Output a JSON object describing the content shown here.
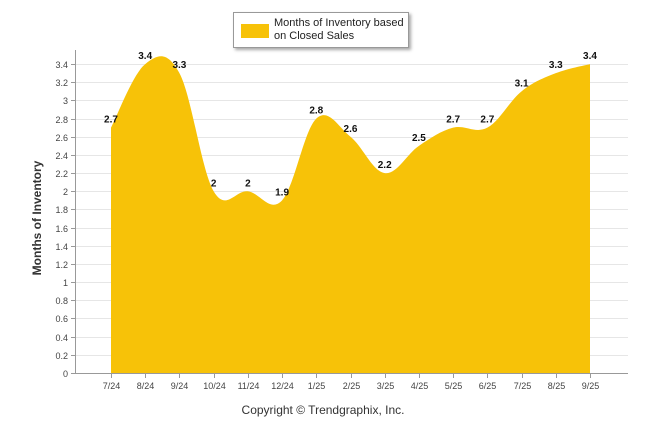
{
  "chart_data": {
    "type": "area",
    "categories": [
      "7/24",
      "8/24",
      "9/24",
      "10/24",
      "11/24",
      "12/24",
      "1/25",
      "2/25",
      "3/25",
      "4/25",
      "5/25",
      "6/25",
      "7/25",
      "8/25",
      "9/25"
    ],
    "series": [
      {
        "name": "Months of Inventory based on Closed Sales",
        "values": [
          2.7,
          3.4,
          3.3,
          2,
          2,
          1.9,
          2.8,
          2.6,
          2.2,
          2.5,
          2.7,
          2.7,
          3.1,
          3.3,
          3.4
        ],
        "labels": [
          "2.7",
          "3.4",
          "3.3",
          "2",
          "2",
          "1.9",
          "2.8",
          "2.6",
          "2.2",
          "2.5",
          "2.7",
          "2.7",
          "3.1",
          "3.3",
          "3.4"
        ],
        "color": "#F7C208"
      }
    ],
    "yticks": [
      "0",
      "0.2",
      "0.4",
      "0.6",
      "0.8",
      "1",
      "1.2",
      "1.4",
      "1.6",
      "1.8",
      "2",
      "2.2",
      "2.4",
      "2.6",
      "2.8",
      "3",
      "3.2",
      "3.4"
    ],
    "ylim": [
      0,
      3.5
    ],
    "xlabel": "",
    "ylabel": "Months of Inventory",
    "grid": true,
    "legend": {
      "position": "top-center",
      "label": "Months of Inventory based on Closed Sales"
    }
  },
  "footer": {
    "copyright": "Copyright © Trendgraphix, Inc."
  }
}
